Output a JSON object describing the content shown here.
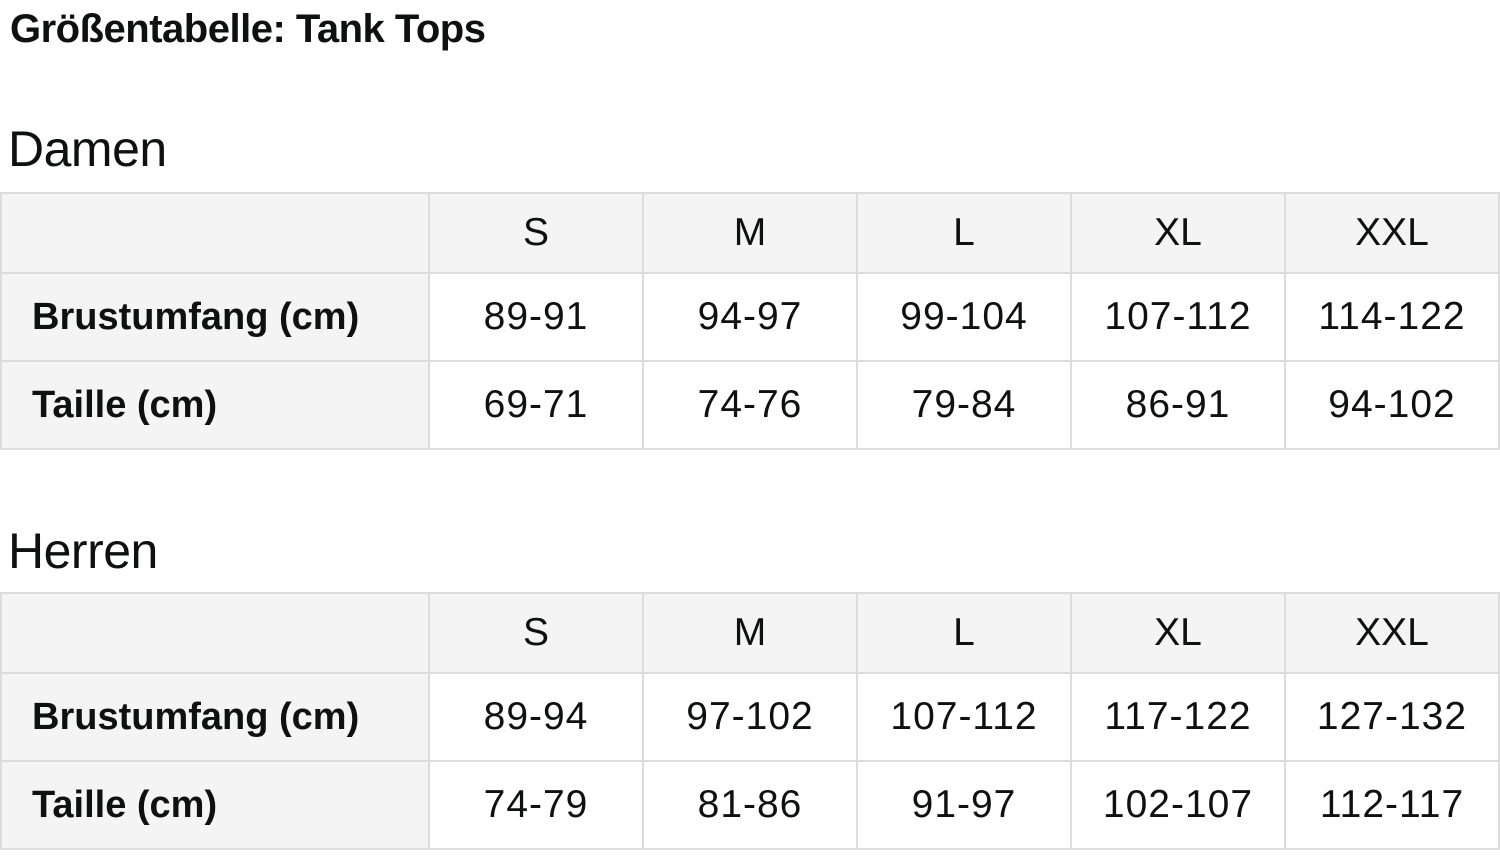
{
  "page_title": "Größentabelle: Tank Tops",
  "colors": {
    "page_bg": "#ffffff",
    "cell_header_bg": "#f4f4f4",
    "cell_data_bg": "#ffffff",
    "border": "#dcdcdc",
    "text": "#0f1111"
  },
  "sections": [
    {
      "heading": "Damen",
      "table": {
        "corner_label": "",
        "columns": [
          "S",
          "M",
          "L",
          "XL",
          "XXL"
        ],
        "rows": [
          {
            "label": "Brustumfang (cm)",
            "values": [
              "89-91",
              "94-97",
              "99-104",
              "107-112",
              "114-122"
            ]
          },
          {
            "label": "Taille (cm)",
            "values": [
              "69-71",
              "74-76",
              "79-84",
              "86-91",
              "94-102"
            ]
          }
        ]
      }
    },
    {
      "heading": "Herren",
      "table": {
        "corner_label": "",
        "columns": [
          "S",
          "M",
          "L",
          "XL",
          "XXL"
        ],
        "rows": [
          {
            "label": "Brustumfang (cm)",
            "values": [
              "89-94",
              "97-102",
              "107-112",
              "117-122",
              "127-132"
            ]
          },
          {
            "label": "Taille (cm)",
            "values": [
              "74-79",
              "81-86",
              "91-97",
              "102-107",
              "112-117"
            ]
          }
        ]
      }
    }
  ]
}
